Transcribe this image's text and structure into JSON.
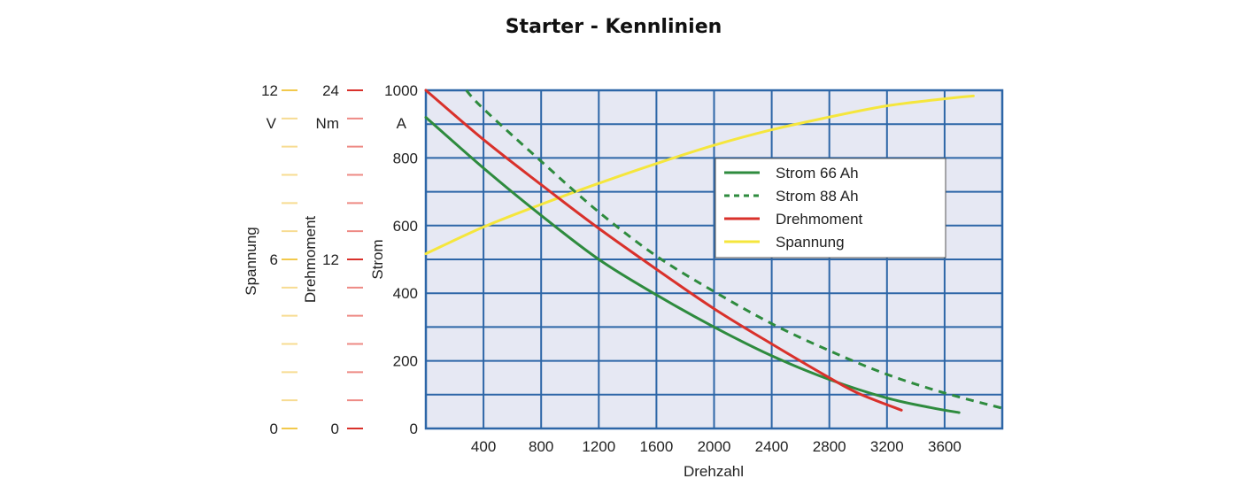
{
  "chart_data": {
    "type": "line",
    "title": "Starter - Kennlinien",
    "xlabel": "Drehzahl",
    "x_ticks": [
      400,
      800,
      1200,
      1600,
      2000,
      2400,
      2800,
      3200,
      3600
    ],
    "xlim": [
      0,
      4000
    ],
    "grid": true,
    "legend_position": "upper-right",
    "axes": {
      "strom": {
        "label": "Strom",
        "unit": "A",
        "range": [
          0,
          1000
        ],
        "ticks": [
          0,
          200,
          400,
          600,
          800,
          1000
        ],
        "color": "#222222"
      },
      "drehmoment": {
        "label": "Drehmoment",
        "unit": "Nm",
        "range": [
          0,
          24
        ],
        "ticks": [
          0,
          12,
          24
        ],
        "color": "#d9312b"
      },
      "spannung": {
        "label": "Spannung",
        "unit": "V",
        "range": [
          0,
          12
        ],
        "ticks": [
          0,
          6,
          12
        ],
        "color": "#f2c94c"
      }
    },
    "series": [
      {
        "name": "Strom 66 Ah",
        "axis": "strom",
        "color": "#2e8b3e",
        "dash": "solid",
        "x": [
          0,
          400,
          800,
          1200,
          1600,
          2000,
          2400,
          2800,
          3200,
          3500,
          3700
        ],
        "y": [
          920,
          770,
          630,
          500,
          395,
          300,
          215,
          145,
          90,
          62,
          47
        ]
      },
      {
        "name": "Strom 88 Ah",
        "axis": "strom",
        "color": "#2e8b3e",
        "dash": "dashed",
        "x": [
          280,
          400,
          800,
          1200,
          1600,
          2000,
          2400,
          2800,
          3200,
          3600,
          4000
        ],
        "y": [
          1000,
          945,
          790,
          640,
          510,
          405,
          310,
          230,
          160,
          105,
          60
        ]
      },
      {
        "name": "Drehmoment",
        "axis": "drehmoment",
        "color": "#d9312b",
        "dash": "solid",
        "x": [
          0,
          400,
          800,
          1200,
          1600,
          2000,
          2400,
          2800,
          3000,
          3300
        ],
        "y": [
          24.0,
          20.5,
          17.3,
          14.2,
          11.3,
          8.5,
          6.0,
          3.6,
          2.5,
          1.3
        ]
      },
      {
        "name": "Spannung",
        "axis": "spannung",
        "color": "#f5e63c",
        "dash": "solid",
        "x": [
          0,
          400,
          800,
          1200,
          1600,
          2000,
          2400,
          2800,
          3200,
          3600,
          3800
        ],
        "y": [
          6.2,
          7.15,
          7.95,
          8.7,
          9.4,
          10.05,
          10.6,
          11.05,
          11.45,
          11.7,
          11.8
        ]
      }
    ]
  }
}
